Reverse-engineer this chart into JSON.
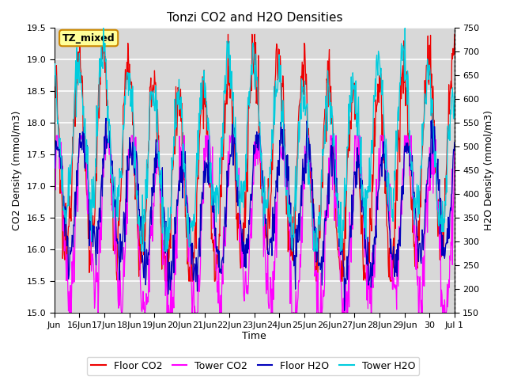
{
  "title": "Tonzi CO2 and H2O Densities",
  "xlabel": "Time",
  "ylabel_left": "CO2 Density (mmol/m3)",
  "ylabel_right": "H2O Density (mmol/m3)",
  "annotation": "TZ_mixed",
  "ylim_left": [
    15.0,
    19.5
  ],
  "ylim_right": [
    150,
    750
  ],
  "yticks_left": [
    15.0,
    15.5,
    16.0,
    16.5,
    17.0,
    17.5,
    18.0,
    18.5,
    19.0,
    19.5
  ],
  "yticks_right": [
    150,
    200,
    250,
    300,
    350,
    400,
    450,
    500,
    550,
    600,
    650,
    700,
    750
  ],
  "colors": {
    "floor_co2": "#EE0000",
    "tower_co2": "#FF00FF",
    "floor_h2o": "#0000BB",
    "tower_h2o": "#00CCDD"
  },
  "background_color": "#FFFFFF",
  "plot_bg_color": "#D8D8D8",
  "grid_color": "#FFFFFF",
  "annotation_bg": "#FFFF99",
  "annotation_border": "#CC8800",
  "lw": 0.9
}
